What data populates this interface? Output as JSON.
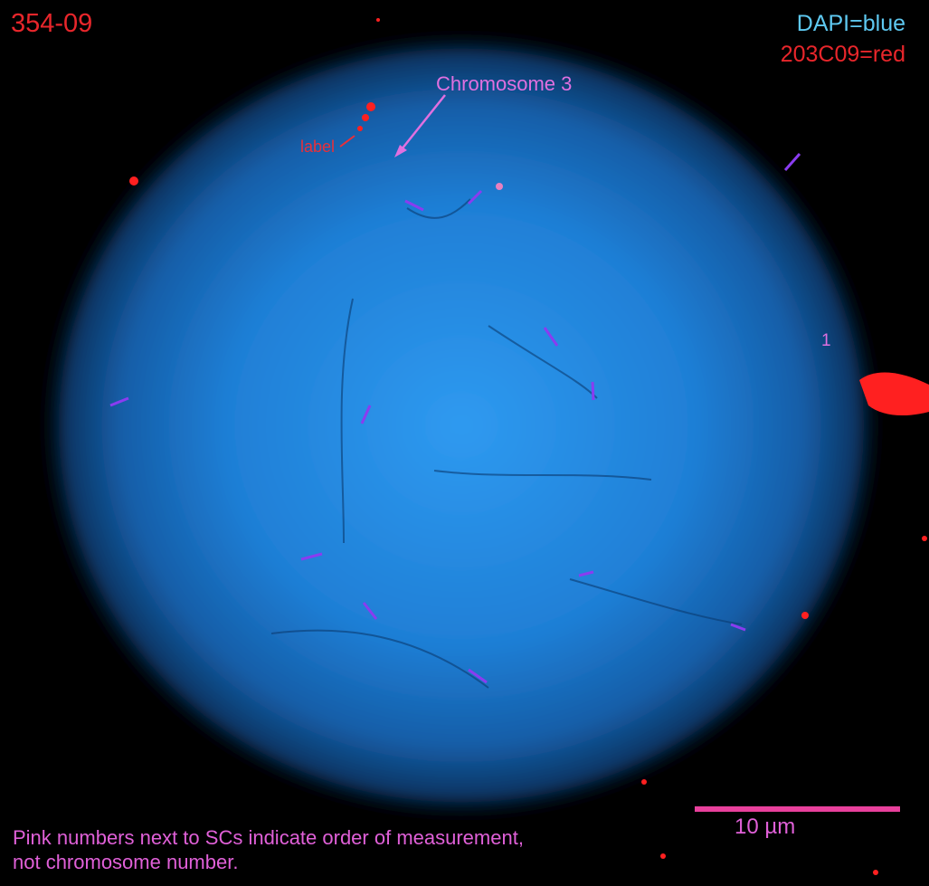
{
  "sample_id": "354-09",
  "legend": {
    "dapi": "DAPI=blue",
    "probe": "203C09=red"
  },
  "annotations": {
    "chromosome": "Chromosome 3",
    "label": "label",
    "measurement_number": "1"
  },
  "scale_bar": {
    "label": "10 µm",
    "color": "#e8409c"
  },
  "note": [
    "Pink numbers next to SCs indicate order of measurement,",
    "not chromosome number."
  ],
  "colors": {
    "dapi": "#2a8fe6",
    "probe": "#ff2020",
    "annotation": "#e070e0",
    "sc_marks": "#8a3cf0"
  }
}
